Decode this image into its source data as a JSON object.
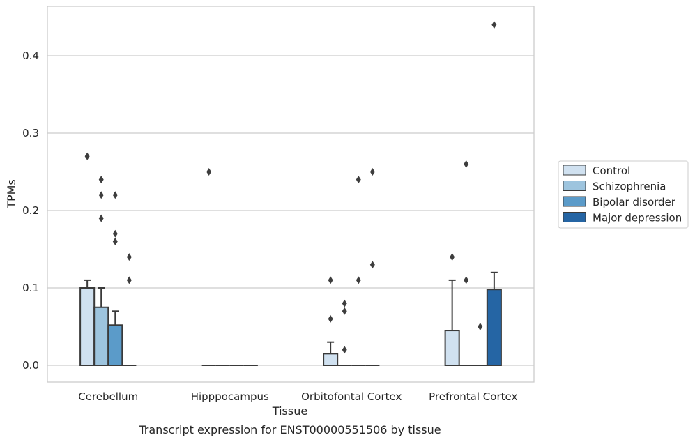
{
  "caption": "Transcript expression for ENST00000551506 by tissue",
  "chart_data": {
    "type": "bar",
    "xlabel": "Tissue",
    "ylabel": "TPMs",
    "ylim": [
      -0.021,
      0.465
    ],
    "yticks": [
      "0.0",
      "0.1",
      "0.2",
      "0.3",
      "0.4"
    ],
    "categories": [
      "Cerebellum",
      "Hipppocampus",
      "Orbitofontal Cortex",
      "Prefrontal Cortex"
    ],
    "grid": true,
    "legend_position": "right",
    "series": [
      {
        "name": "Control",
        "color": "#d0e1f0",
        "values": [
          0.1,
          0.0,
          0.015,
          0.045
        ],
        "whisker_top": [
          0.11,
          null,
          0.03,
          0.11
        ],
        "outliers": [
          [
            0.27
          ],
          [
            0.25
          ],
          [
            0.06,
            0.11
          ],
          [
            0.14
          ]
        ]
      },
      {
        "name": "Schizophrenia",
        "color": "#9dc4de",
        "values": [
          0.075,
          0.0,
          0.0,
          0.0
        ],
        "whisker_top": [
          0.1,
          null,
          null,
          null
        ],
        "outliers": [
          [
            0.19,
            0.22,
            0.24
          ],
          [],
          [
            0.02,
            0.07,
            0.08
          ],
          [
            0.26,
            0.11
          ]
        ]
      },
      {
        "name": "Bipolar disorder",
        "color": "#5b9bc9",
        "values": [
          0.052,
          0.0,
          0.0,
          0.0
        ],
        "whisker_top": [
          0.07,
          null,
          null,
          null
        ],
        "outliers": [
          [
            0.16,
            0.17,
            0.22
          ],
          [],
          [
            0.11,
            0.24
          ],
          [
            0.05
          ]
        ]
      },
      {
        "name": "Major depression",
        "color": "#2565a4",
        "values": [
          0.0,
          0.0,
          0.0,
          0.098
        ],
        "whisker_top": [
          null,
          null,
          null,
          0.12
        ],
        "outliers": [
          [
            0.11,
            0.14
          ],
          [],
          [
            0.13,
            0.25
          ],
          [
            0.44
          ]
        ]
      }
    ]
  }
}
